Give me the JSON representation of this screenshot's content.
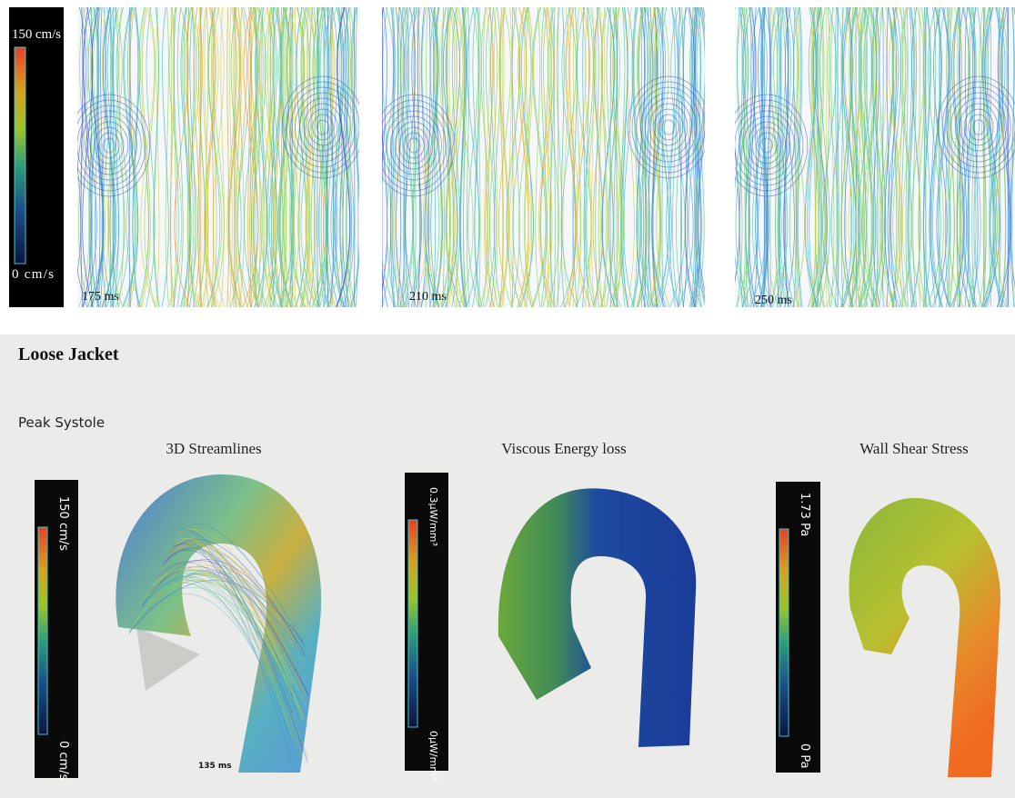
{
  "top": {
    "colorbar": {
      "max": "150 cm/s",
      "min": "0 cm/s"
    },
    "frames": [
      "175 ms",
      "210 ms",
      "250 ms"
    ]
  },
  "bottom": {
    "title": "Loose Jacket",
    "subtitle": "Peak Systole",
    "panels": [
      {
        "title": "3D Streamlines",
        "max": "150 cm/s",
        "min": "0 cm/s",
        "time": "135 ms"
      },
      {
        "title": "Viscous Energy loss",
        "max": "0.3µW/mm³",
        "min": "0µW/mm³"
      },
      {
        "title": "Wall Shear Stress",
        "max": "1.73 Pa",
        "min": "0 Pa"
      }
    ]
  }
}
